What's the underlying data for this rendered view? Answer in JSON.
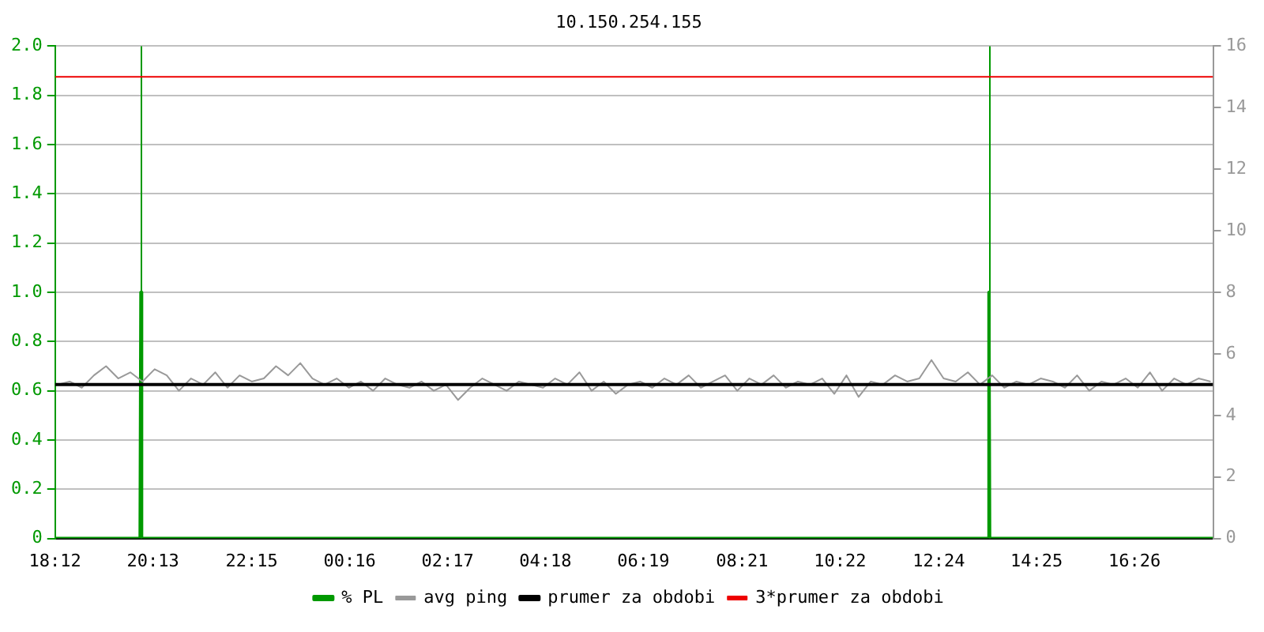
{
  "chart_data": {
    "type": "line",
    "title": "10.150.254.155",
    "xlim": [
      "--01-01T18:12",
      "--01-02T18:03"
    ],
    "xticks": [
      {
        "value": "--01-01T18:12",
        "label": "18:12"
      },
      {
        "value": "--01-01T20:13",
        "label": "20:13"
      },
      {
        "value": "--01-01T22:15",
        "label": "22:15"
      },
      {
        "value": "--01-02T00:16",
        "label": "00:16"
      },
      {
        "value": "--01-02T02:17",
        "label": "02:17"
      },
      {
        "value": "--01-02T04:18",
        "label": "04:18"
      },
      {
        "value": "--01-02T06:19",
        "label": "06:19"
      },
      {
        "value": "--01-02T08:21",
        "label": "08:21"
      },
      {
        "value": "--01-02T10:22",
        "label": "10:22"
      },
      {
        "value": "--01-02T12:24",
        "label": "12:24"
      },
      {
        "value": "--01-02T14:25",
        "label": "14:25"
      },
      {
        "value": "--01-02T16:26",
        "label": "16:26"
      }
    ],
    "ylim": [
      0,
      2
    ],
    "yticks": [
      0,
      0.2,
      0.4,
      0.6,
      0.8,
      {
        "value": 1,
        "label": "1.0"
      },
      1.2,
      1.4,
      1.6,
      1.8,
      {
        "value": 2,
        "label": "2.0"
      }
    ],
    "y2lim": [
      0,
      16
    ],
    "y2ticks": [
      0,
      2,
      4,
      6,
      8,
      10,
      12,
      14,
      16
    ],
    "grid": "y",
    "legend": "bottom",
    "marker": "none",
    "series": [
      {
        "name": "% PL",
        "color": "#009900",
        "x": [
          "--01-01T18:12",
          "--01-01T19:57",
          "--01-01T19:58",
          "--01-01T19:59",
          "--01-02T13:25",
          "--01-02T13:26",
          "--01-02T13:27",
          "--01-02T18:03"
        ],
        "values": [
          0,
          0,
          1,
          0,
          0,
          1,
          0,
          0
        ]
      },
      {
        "name": "avg ping",
        "color": "#999999",
        "axis": "y2",
        "x": [
          "--01-01T18:15",
          "--01-01T18:30",
          "--01-01T18:45",
          "--01-01T19:00",
          "--01-01T19:15",
          "--01-01T19:30",
          "--01-01T19:45",
          "--01-01T20:00",
          "--01-01T20:15",
          "--01-01T20:30",
          "--01-01T20:45",
          "--01-01T21:00",
          "--01-01T21:15",
          "--01-01T21:30",
          "--01-01T21:45",
          "--01-01T22:00",
          "--01-01T22:15",
          "--01-01T22:30",
          "--01-01T22:45",
          "--01-01T23:00",
          "--01-01T23:15",
          "--01-01T23:30",
          "--01-01T23:45",
          "--01-02T00:00",
          "--01-02T00:15",
          "--01-02T00:30",
          "--01-02T00:45",
          "--01-02T01:00",
          "--01-02T01:15",
          "--01-02T01:30",
          "--01-02T01:45",
          "--01-02T02:00",
          "--01-02T02:15",
          "--01-02T02:30",
          "--01-02T02:45",
          "--01-02T03:00",
          "--01-02T03:15",
          "--01-02T03:30",
          "--01-02T03:45",
          "--01-02T04:00",
          "--01-02T04:15",
          "--01-02T04:30",
          "--01-02T04:45",
          "--01-02T05:00",
          "--01-02T05:15",
          "--01-02T05:30",
          "--01-02T05:45",
          "--01-02T06:00",
          "--01-02T06:15",
          "--01-02T06:30",
          "--01-02T06:45",
          "--01-02T07:00",
          "--01-02T07:15",
          "--01-02T07:30",
          "--01-02T07:45",
          "--01-02T08:00",
          "--01-02T08:15",
          "--01-02T08:30",
          "--01-02T08:45",
          "--01-02T09:00",
          "--01-02T09:15",
          "--01-02T09:30",
          "--01-02T09:45",
          "--01-02T10:00",
          "--01-02T10:15",
          "--01-02T10:30",
          "--01-02T10:45",
          "--01-02T11:00",
          "--01-02T11:15",
          "--01-02T11:30",
          "--01-02T11:45",
          "--01-02T12:00",
          "--01-02T12:15",
          "--01-02T12:30",
          "--01-02T12:45",
          "--01-02T13:00",
          "--01-02T13:15",
          "--01-02T13:30",
          "--01-02T13:45",
          "--01-02T14:00",
          "--01-02T14:15",
          "--01-02T14:30",
          "--01-02T14:45",
          "--01-02T15:00",
          "--01-02T15:15",
          "--01-02T15:30",
          "--01-02T15:45",
          "--01-02T16:00",
          "--01-02T16:15",
          "--01-02T16:30",
          "--01-02T16:45",
          "--01-02T17:00",
          "--01-02T17:15",
          "--01-02T17:30",
          "--01-02T17:45",
          "--01-02T18:00"
        ],
        "values": [
          5.0,
          5.1,
          4.9,
          5.3,
          5.6,
          5.2,
          5.4,
          5.1,
          5.5,
          5.3,
          4.8,
          5.2,
          5.0,
          5.4,
          4.9,
          5.3,
          5.1,
          5.2,
          5.6,
          5.3,
          5.7,
          5.2,
          5.0,
          5.2,
          4.9,
          5.1,
          4.8,
          5.2,
          5.0,
          4.9,
          5.1,
          4.8,
          5.0,
          4.5,
          4.9,
          5.2,
          5.0,
          4.8,
          5.1,
          5.0,
          4.9,
          5.2,
          5.0,
          5.4,
          4.8,
          5.1,
          4.7,
          5.0,
          5.1,
          4.9,
          5.2,
          5.0,
          5.3,
          4.9,
          5.1,
          5.3,
          4.8,
          5.2,
          5.0,
          5.3,
          4.9,
          5.1,
          5.0,
          5.2,
          4.7,
          5.3,
          4.6,
          5.1,
          5.0,
          5.3,
          5.1,
          5.2,
          5.8,
          5.2,
          5.1,
          5.4,
          5.0,
          5.3,
          4.9,
          5.1,
          5.0,
          5.2,
          5.1,
          4.9,
          5.3,
          4.8,
          5.1,
          5.0,
          5.2,
          4.9,
          5.4,
          4.8,
          5.2,
          5.0,
          5.2,
          5.1
        ]
      },
      {
        "name": "prumer za obdobi",
        "color": "#000000",
        "axis": "y2",
        "x": [
          "--01-01T18:12",
          "--01-02T18:03"
        ],
        "values": [
          5,
          5
        ]
      },
      {
        "name": "3*prumer za obdobi",
        "color": "#ee0000",
        "axis": "y2",
        "x": [
          "--01-01T18:12",
          "--01-02T18:03"
        ],
        "values": [
          15,
          15
        ]
      }
    ],
    "ref_lines": [
      {
        "axis": "x",
        "value": "--01-01T19:58",
        "color": "#009900"
      },
      {
        "axis": "x",
        "value": "--01-02T13:26",
        "color": "#009900"
      }
    ]
  }
}
